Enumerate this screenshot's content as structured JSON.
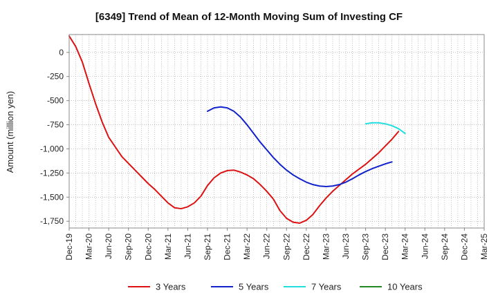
{
  "chart_data": {
    "type": "line",
    "title": "[6349]  Trend of Mean of 12-Month Moving Sum of Investing CF",
    "xlabel": "",
    "ylabel": "Amount (million yen)",
    "ylim": [
      -1820,
      185
    ],
    "yticks": [
      0,
      -250,
      -500,
      -750,
      -1000,
      -1250,
      -1500,
      -1750
    ],
    "ytick_labels": [
      "0",
      "-250",
      "-500",
      "-750",
      "-1,000",
      "-1,250",
      "-1,500",
      "-1,750"
    ],
    "x_start": "Dec-19",
    "x_end": "Mar-25",
    "xtick_labels": [
      "Dec-19",
      "Mar-20",
      "Jun-20",
      "Sep-20",
      "Dec-20",
      "Mar-21",
      "Jun-21",
      "Sep-21",
      "Dec-21",
      "Mar-22",
      "Jun-22",
      "Sep-22",
      "Dec-22",
      "Mar-23",
      "Jun-23",
      "Sep-23",
      "Dec-23",
      "Mar-24",
      "Jun-24",
      "Sep-24",
      "Dec-24",
      "Mar-25"
    ],
    "grid": true,
    "legend_position": "bottom",
    "series": [
      {
        "name": "3 Years",
        "color": "#dd1111",
        "start_index": 0,
        "values": [
          170,
          60,
          -100,
          -320,
          -530,
          -720,
          -880,
          -980,
          -1080,
          -1150,
          -1220,
          -1290,
          -1360,
          -1420,
          -1490,
          -1560,
          -1610,
          -1620,
          -1600,
          -1560,
          -1490,
          -1380,
          -1300,
          -1250,
          -1225,
          -1220,
          -1240,
          -1270,
          -1310,
          -1370,
          -1440,
          -1520,
          -1640,
          -1720,
          -1760,
          -1770,
          -1740,
          -1680,
          -1590,
          -1510,
          -1440,
          -1380,
          -1320,
          -1260,
          -1210,
          -1160,
          -1100,
          -1040,
          -970,
          -900,
          -820
        ]
      },
      {
        "name": "5 Years",
        "color": "#1122cc",
        "start_index": 21,
        "values": [
          -610,
          -575,
          -565,
          -575,
          -610,
          -670,
          -750,
          -840,
          -930,
          -1010,
          -1090,
          -1160,
          -1220,
          -1270,
          -1310,
          -1345,
          -1370,
          -1385,
          -1390,
          -1385,
          -1370,
          -1345,
          -1310,
          -1270,
          -1235,
          -1205,
          -1180,
          -1155,
          -1135
        ]
      },
      {
        "name": "7 Years",
        "color": "#22dddd",
        "start_index": 45,
        "values": [
          -740,
          -730,
          -730,
          -740,
          -760,
          -790,
          -840
        ]
      },
      {
        "name": "10 Years",
        "color": "#228822",
        "start_index": 0,
        "values": []
      }
    ]
  }
}
